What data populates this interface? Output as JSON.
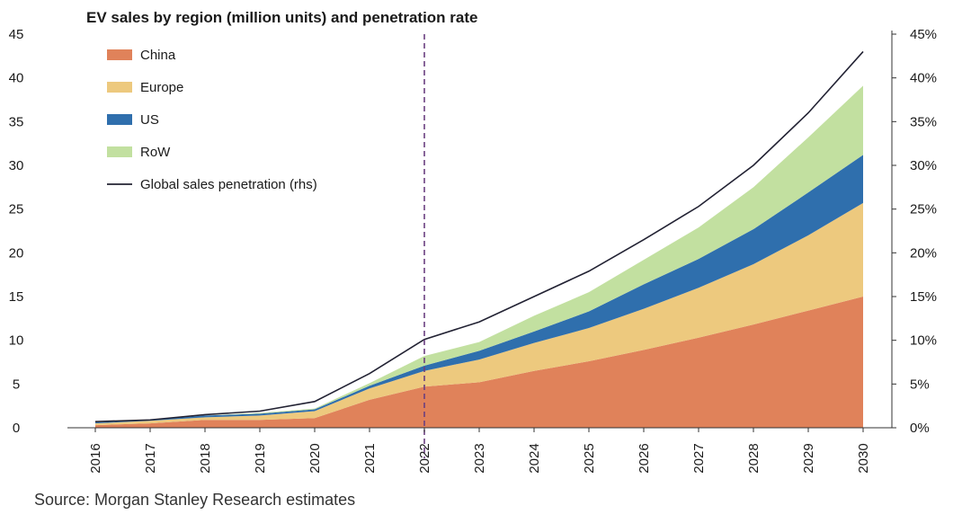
{
  "title": "EV sales by region (million units) and penetration rate",
  "source": "Source: Morgan Stanley Research estimates",
  "chart_data": {
    "type": "area",
    "stacked": true,
    "title": "EV sales by region (million units) and penetration rate",
    "xlabel": "",
    "ylabel": "",
    "x": [
      "2016",
      "2017",
      "2018",
      "2019",
      "2020",
      "2021",
      "2022",
      "2023",
      "2024",
      "2025",
      "2026",
      "2027",
      "2028",
      "2029",
      "2030"
    ],
    "ylim": [
      0,
      45
    ],
    "yticks": [
      0,
      5,
      10,
      15,
      20,
      25,
      30,
      35,
      40,
      45
    ],
    "y2lim": [
      0,
      45
    ],
    "y2ticks": [
      "0%",
      "5%",
      "10%",
      "15%",
      "20%",
      "25%",
      "30%",
      "35%",
      "40%",
      "45%"
    ],
    "grid": false,
    "legend_position": "top-left",
    "divider_at": "2022",
    "series": [
      {
        "name": "China",
        "color": "#e0825a",
        "values": [
          0.3,
          0.5,
          0.9,
          0.9,
          1.1,
          3.2,
          4.7,
          5.2,
          6.5,
          7.6,
          8.9,
          10.3,
          11.8,
          13.4,
          15.0
        ]
      },
      {
        "name": "Europe",
        "color": "#edc97e",
        "values": [
          0.2,
          0.3,
          0.3,
          0.5,
          0.8,
          1.3,
          1.8,
          2.6,
          3.2,
          3.8,
          4.7,
          5.7,
          6.9,
          8.6,
          10.7
        ]
      },
      {
        "name": "US",
        "color": "#2f6fad",
        "values": [
          0.1,
          0.1,
          0.2,
          0.2,
          0.2,
          0.3,
          0.6,
          1.0,
          1.3,
          1.9,
          2.8,
          3.3,
          4.0,
          4.9,
          5.5
        ]
      },
      {
        "name": "RoW",
        "color": "#c2e0a0",
        "values": [
          0.0,
          0.0,
          0.0,
          0.1,
          0.1,
          0.3,
          1.1,
          1.0,
          1.8,
          2.2,
          2.8,
          3.6,
          4.8,
          6.3,
          7.9
        ]
      }
    ],
    "line_series": {
      "name": "Global sales penetration (rhs)",
      "axis": "right",
      "unit": "%",
      "color": "#222233",
      "values": [
        0.7,
        0.9,
        1.5,
        1.9,
        3.0,
        6.2,
        10.1,
        12.1,
        15.0,
        17.9,
        21.5,
        25.3,
        30.0,
        36.0,
        43.0
      ]
    }
  }
}
